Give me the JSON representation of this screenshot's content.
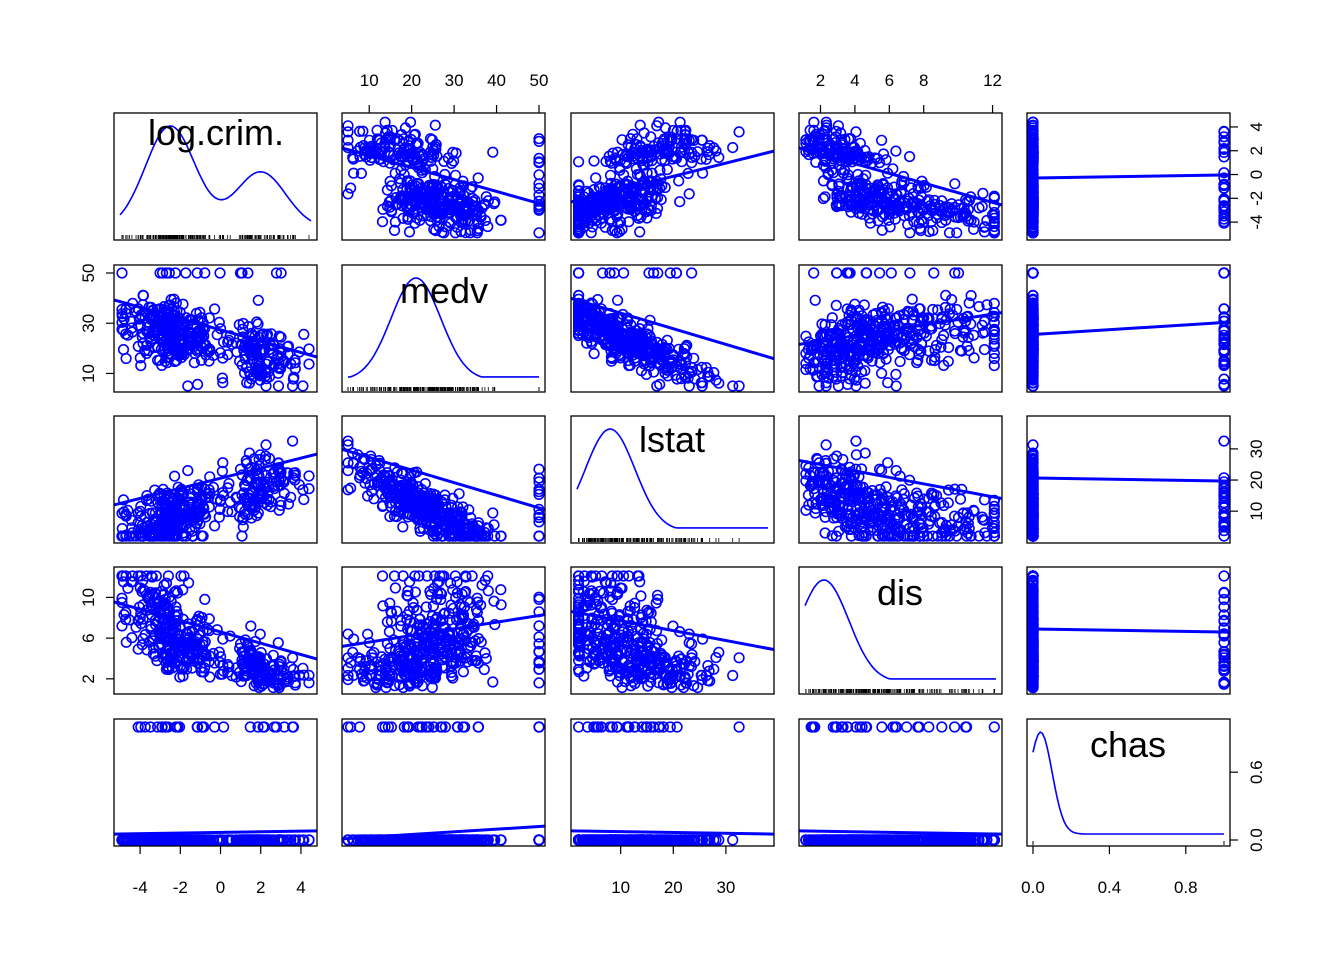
{
  "chart_data": {
    "type": "scatter",
    "variables": [
      "log.crim.",
      "medv",
      "lstat",
      "dis",
      "chas"
    ],
    "color": "#0000ff",
    "grid": false,
    "axes": [
      {
        "name": "log.crim.",
        "range": [
          -5.0,
          4.5
        ],
        "ticks": [
          -4,
          -2,
          0,
          2,
          4
        ],
        "tick_labels": [
          "-4",
          "-2",
          "0",
          "2",
          "4"
        ],
        "axis_side": "bottom"
      },
      {
        "name": "medv",
        "range": [
          5,
          50
        ],
        "ticks": [
          10,
          20,
          30,
          40,
          50
        ],
        "tick_labels": [
          "10",
          "20",
          "30",
          "40",
          "50"
        ],
        "secondary_ticks": [
          10,
          30,
          50
        ],
        "secondary_labels": [
          "10",
          "30",
          "50"
        ],
        "axis_side": "top",
        "secondary_side": "left"
      },
      {
        "name": "lstat",
        "range": [
          1.7,
          38
        ],
        "ticks": [
          10,
          20,
          30
        ],
        "tick_labels": [
          "10",
          "20",
          "30"
        ],
        "axis_side": "bottom",
        "secondary_side": "right"
      },
      {
        "name": "dis",
        "range": [
          1.1,
          12.2
        ],
        "ticks": [
          2,
          4,
          6,
          8,
          12
        ],
        "tick_labels": [
          "2",
          "4",
          "6",
          "8",
          "12"
        ],
        "secondary_ticks": [
          2,
          6,
          10
        ],
        "secondary_labels": [
          "2",
          "6",
          "10"
        ],
        "axis_side": "top",
        "secondary_side": "left"
      },
      {
        "name": "chas",
        "range": [
          0,
          1
        ],
        "ticks": [
          0.0,
          0.4,
          0.8
        ],
        "tick_labels": [
          "0.0",
          "0.4",
          "0.8"
        ],
        "secondary_ticks": [
          0.0,
          0.6
        ],
        "secondary_labels": [
          "0.0",
          "0.6"
        ],
        "axis_side": "bottom",
        "secondary_side": "right"
      }
    ],
    "right_axis_log_crim": {
      "ticks": [
        4,
        2,
        0,
        -2,
        -4
      ],
      "tick_labels": [
        "4",
        "2",
        "0",
        "-2",
        "-4"
      ]
    },
    "right_axis_lstat": {
      "ticks": [
        30,
        20,
        10
      ],
      "tick_labels": [
        "30",
        "20",
        "10"
      ]
    },
    "density_peaks": {
      "log.crim.": [
        [
          -2.5,
          1.0
        ],
        [
          2.0,
          0.55
        ]
      ],
      "medv": [
        [
          21,
          1.0
        ]
      ],
      "lstat": [
        [
          8,
          1.0
        ]
      ],
      "dis": [
        [
          2.2,
          1.0
        ]
      ],
      "chas": [
        [
          0.04,
          1.0
        ]
      ]
    },
    "smooth_slopes": {
      "log.crim.~medv": -0.9,
      "log.crim.~lstat": 0.8,
      "log.crim.~dis": -0.9,
      "medv~lstat": -0.95,
      "medv~dis": 0.5,
      "lstat~dis": -0.6,
      "chas~log.crim.": 0.05,
      "chas~medv": 0.2,
      "chas~lstat": -0.05,
      "chas~dis": -0.05
    }
  }
}
